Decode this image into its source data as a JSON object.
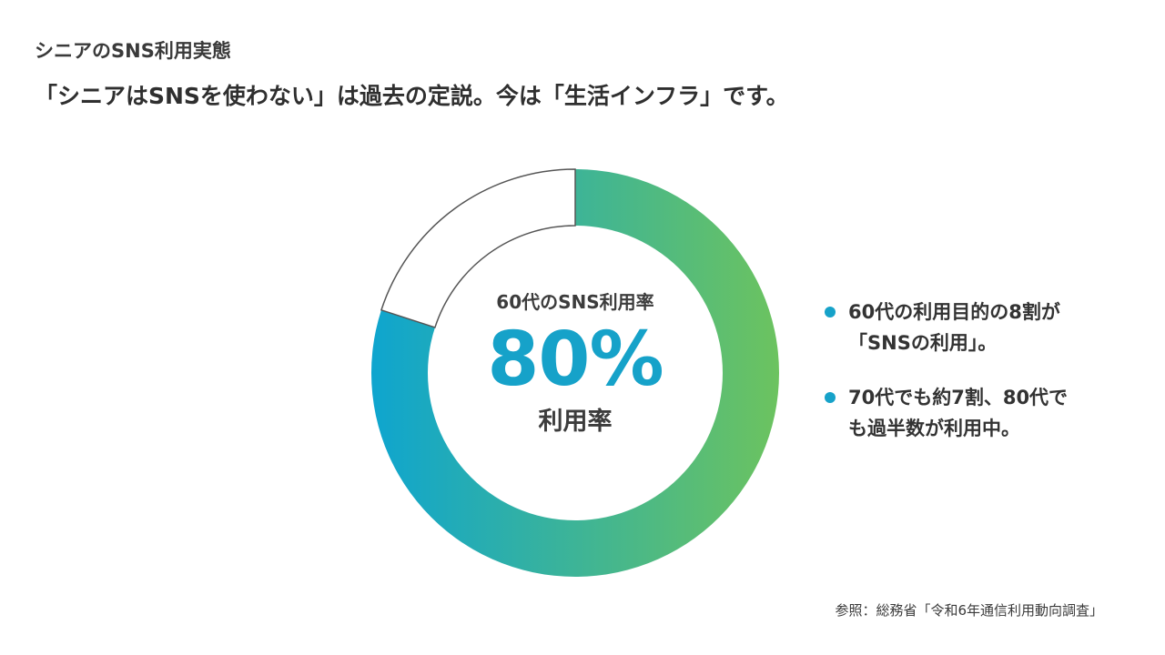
{
  "header": {
    "label": "シニアのSNS利用実態",
    "headline": "「シニアはSNSを使わない」は過去の定説。今は「生活インフラ」です。"
  },
  "colors": {
    "accent": "#16a2c9",
    "gradient_start": "#0ea5cf",
    "gradient_end": "#6cc35f",
    "remainder_fill": "#ffffff",
    "remainder_stroke": "#555555"
  },
  "chart_data": {
    "type": "pie",
    "style": "donut",
    "slices": [
      {
        "label": "利用率",
        "value": 80
      },
      {
        "label": "",
        "value": 20
      }
    ],
    "center": {
      "caption": "60代のSNS利用率",
      "value_text": "80%",
      "sub_label": "利用率"
    }
  },
  "notes": [
    {
      "text": "60代の利用目的の8割が\n「SNSの利用」。",
      "icon": "bullet-dot-icon"
    },
    {
      "text": "70代でも約7割、80代で\nも過半数が利用中。",
      "icon": "bullet-dot-icon"
    }
  ],
  "footer": {
    "source": "参照：総務省「令和6年通信利用動向調査」"
  }
}
